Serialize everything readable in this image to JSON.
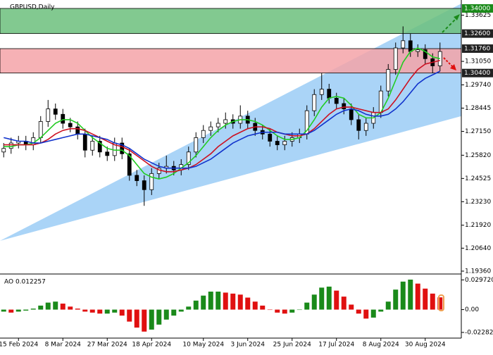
{
  "chart_data": {
    "type": "candlestick",
    "title": "GBPUSD,Daily",
    "categories": [
      null,
      null,
      "15 Feb 2024",
      null,
      null,
      null,
      null,
      null,
      "8 Mar 2024",
      null,
      null,
      null,
      null,
      null,
      "27 Mar 2024",
      null,
      null,
      null,
      null,
      null,
      "18 Apr 2024",
      null,
      null,
      null,
      null,
      null,
      null,
      "10 May 2024",
      null,
      null,
      null,
      null,
      null,
      "3 Jun 2024",
      null,
      null,
      null,
      null,
      null,
      "25 Jun 2024",
      null,
      null,
      null,
      null,
      null,
      "17 Jul 2024",
      null,
      null,
      null,
      null,
      null,
      "8 Aug 2024",
      null,
      null,
      null,
      null,
      null,
      "30 Aug 2024",
      null,
      null
    ],
    "candles": {
      "open": [
        1.26,
        1.262,
        1.265,
        1.266,
        1.264,
        1.268,
        1.277,
        1.284,
        1.281,
        1.276,
        1.274,
        1.27,
        1.261,
        1.266,
        1.26,
        1.258,
        1.265,
        1.259,
        1.247,
        1.244,
        1.239,
        1.248,
        1.251,
        1.252,
        1.25,
        1.253,
        1.26,
        1.268,
        1.272,
        1.274,
        1.276,
        1.278,
        1.276,
        1.28,
        1.276,
        1.272,
        1.27,
        1.266,
        1.264,
        1.266,
        1.268,
        1.27,
        1.283,
        1.292,
        1.295,
        1.29,
        1.287,
        1.284,
        1.278,
        1.272,
        1.276,
        1.282,
        1.294,
        1.306,
        1.318,
        1.322,
        1.316,
        1.317,
        1.312,
        1.308
      ],
      "high": [
        1.265,
        1.268,
        1.269,
        1.269,
        1.271,
        1.28,
        1.289,
        1.287,
        1.284,
        1.279,
        1.277,
        1.273,
        1.269,
        1.269,
        1.263,
        1.268,
        1.268,
        1.262,
        1.25,
        1.247,
        1.251,
        1.254,
        1.258,
        1.255,
        1.256,
        1.263,
        1.271,
        1.275,
        1.277,
        1.279,
        1.282,
        1.281,
        1.286,
        1.283,
        1.279,
        1.275,
        1.273,
        1.269,
        1.269,
        1.271,
        1.273,
        1.286,
        1.295,
        1.304,
        1.298,
        1.293,
        1.29,
        1.287,
        1.281,
        1.279,
        1.285,
        1.297,
        1.309,
        1.321,
        1.33,
        1.326,
        1.32,
        1.32,
        1.315,
        1.321
      ],
      "low": [
        1.257,
        1.259,
        1.262,
        1.261,
        1.261,
        1.265,
        1.274,
        1.278,
        1.273,
        1.271,
        1.267,
        1.257,
        1.258,
        1.257,
        1.255,
        1.255,
        1.256,
        1.244,
        1.241,
        1.23,
        1.236,
        1.245,
        1.248,
        1.247,
        1.247,
        1.25,
        1.257,
        1.265,
        1.269,
        1.271,
        1.273,
        1.273,
        1.273,
        1.273,
        1.269,
        1.267,
        1.263,
        1.261,
        1.261,
        1.263,
        1.265,
        1.267,
        1.28,
        1.289,
        1.287,
        1.284,
        1.281,
        1.275,
        1.267,
        1.269,
        1.273,
        1.279,
        1.291,
        1.303,
        1.315,
        1.313,
        1.313,
        1.309,
        1.304,
        1.305
      ],
      "close": [
        1.262,
        1.265,
        1.266,
        1.264,
        1.268,
        1.277,
        1.284,
        1.281,
        1.276,
        1.274,
        1.27,
        1.261,
        1.266,
        1.26,
        1.258,
        1.265,
        1.259,
        1.247,
        1.244,
        1.239,
        1.248,
        1.251,
        1.252,
        1.25,
        1.253,
        1.26,
        1.268,
        1.272,
        1.274,
        1.276,
        1.278,
        1.276,
        1.28,
        1.276,
        1.272,
        1.27,
        1.266,
        1.264,
        1.266,
        1.268,
        1.27,
        1.283,
        1.292,
        1.295,
        1.29,
        1.287,
        1.284,
        1.278,
        1.272,
        1.276,
        1.282,
        1.294,
        1.306,
        1.318,
        1.322,
        1.316,
        1.317,
        1.312,
        1.308,
        1.316
      ],
      "up_color": "#ffffff",
      "down_color": "#000000",
      "edge_color": "#000000"
    },
    "series": [
      {
        "color": "#22cc22",
        "values": [
          1.263,
          1.263,
          1.264,
          1.264,
          1.265,
          1.268,
          1.272,
          1.276,
          1.278,
          1.278,
          1.276,
          1.272,
          1.268,
          1.265,
          1.262,
          1.261,
          1.261,
          1.258,
          1.253,
          1.248,
          1.246,
          1.245,
          1.246,
          1.248,
          1.251,
          1.254,
          1.258,
          1.263,
          1.268,
          1.272,
          1.275,
          1.277,
          1.278,
          1.278,
          1.277,
          1.275,
          1.272,
          1.269,
          1.267,
          1.267,
          1.268,
          1.272,
          1.278,
          1.285,
          1.29,
          1.291,
          1.29,
          1.286,
          1.281,
          1.279,
          1.279,
          1.282,
          1.29,
          1.3,
          1.31,
          1.316,
          1.318,
          1.316,
          1.313,
          1.312
        ]
      },
      {
        "color": "#cc1122",
        "values": [
          1.264,
          1.264,
          1.264,
          1.264,
          1.264,
          1.265,
          1.267,
          1.27,
          1.272,
          1.273,
          1.273,
          1.272,
          1.27,
          1.268,
          1.266,
          1.264,
          1.263,
          1.261,
          1.258,
          1.255,
          1.252,
          1.25,
          1.249,
          1.249,
          1.25,
          1.251,
          1.253,
          1.256,
          1.259,
          1.263,
          1.266,
          1.269,
          1.271,
          1.273,
          1.274,
          1.274,
          1.273,
          1.271,
          1.27,
          1.269,
          1.269,
          1.27,
          1.273,
          1.277,
          1.281,
          1.284,
          1.285,
          1.285,
          1.284,
          1.283,
          1.282,
          1.282,
          1.284,
          1.289,
          1.295,
          1.301,
          1.306,
          1.309,
          1.31,
          1.311
        ]
      },
      {
        "color": "#1133cc",
        "values": [
          1.268,
          1.267,
          1.266,
          1.266,
          1.265,
          1.265,
          1.266,
          1.267,
          1.268,
          1.269,
          1.27,
          1.27,
          1.269,
          1.268,
          1.267,
          1.265,
          1.264,
          1.262,
          1.259,
          1.256,
          1.254,
          1.252,
          1.251,
          1.251,
          1.251,
          1.251,
          1.252,
          1.254,
          1.256,
          1.259,
          1.262,
          1.265,
          1.267,
          1.269,
          1.27,
          1.271,
          1.271,
          1.271,
          1.27,
          1.27,
          1.27,
          1.27,
          1.272,
          1.275,
          1.278,
          1.281,
          1.283,
          1.284,
          1.283,
          1.281,
          1.28,
          1.28,
          1.281,
          1.284,
          1.288,
          1.293,
          1.298,
          1.301,
          1.303,
          1.305
        ]
      }
    ],
    "ylim": [
      1.1924,
      1.3447
    ],
    "yticks": [
      {
        "value": 1.1936,
        "label": "1.19360"
      },
      {
        "value": 1.2064,
        "label": "1.20640"
      },
      {
        "value": 1.2192,
        "label": "1.21920"
      },
      {
        "value": 1.2323,
        "label": "1.23230"
      },
      {
        "value": 1.24525,
        "label": "1.24525"
      },
      {
        "value": 1.2582,
        "label": "1.25820"
      },
      {
        "value": 1.2715,
        "label": "1.27150"
      },
      {
        "value": 1.28445,
        "label": "1.28445"
      },
      {
        "value": 1.2974,
        "label": "1.29740"
      },
      {
        "value": 1.3105,
        "label": "1.31050"
      },
      {
        "value": 1.33625,
        "label": "1.33625"
      }
    ],
    "channel": {
      "upper": [
        1.2105,
        1.3427
      ],
      "lower": [
        1.2105,
        1.28
      ],
      "color": "#aad4f7"
    },
    "zones": [
      {
        "top": 1.34,
        "bottom": 1.326,
        "top_label": "1.34000",
        "bottom_label": "1.32600",
        "color": "#6cbf7c"
      },
      {
        "top": 1.3176,
        "bottom": 1.304,
        "top_label": "1.31760",
        "bottom_label": "1.30400",
        "color": "#f4a3a8"
      }
    ],
    "ao": {
      "label": "AO 0.012257",
      "values": [
        -0.002,
        -0.003,
        -0.002,
        -0.001,
        0.001,
        0.004,
        0.007,
        0.008,
        0.006,
        0.003,
        0.001,
        -0.002,
        -0.003,
        -0.004,
        -0.004,
        -0.003,
        -0.006,
        -0.012,
        -0.018,
        -0.022,
        -0.02,
        -0.015,
        -0.01,
        -0.006,
        -0.002,
        0.003,
        0.009,
        0.014,
        0.018,
        0.018,
        0.017,
        0.016,
        0.015,
        0.012,
        0.008,
        0.004,
        0.0,
        -0.003,
        -0.004,
        -0.003,
        0.0,
        0.007,
        0.015,
        0.022,
        0.023,
        0.019,
        0.013,
        0.005,
        -0.004,
        -0.009,
        -0.008,
        -0.002,
        0.008,
        0.02,
        0.028,
        0.03,
        0.026,
        0.021,
        0.016,
        0.012257
      ],
      "ylim": [
        -0.0285,
        0.0335
      ],
      "yticks": [
        {
          "value": 0.02972,
          "label": "0.029720"
        },
        {
          "value": 0,
          "label": "0.00"
        },
        {
          "value": -0.022821,
          "label": "-0.022821"
        }
      ],
      "up_color": "#1a8a1a",
      "down_color": "#e01010"
    }
  }
}
